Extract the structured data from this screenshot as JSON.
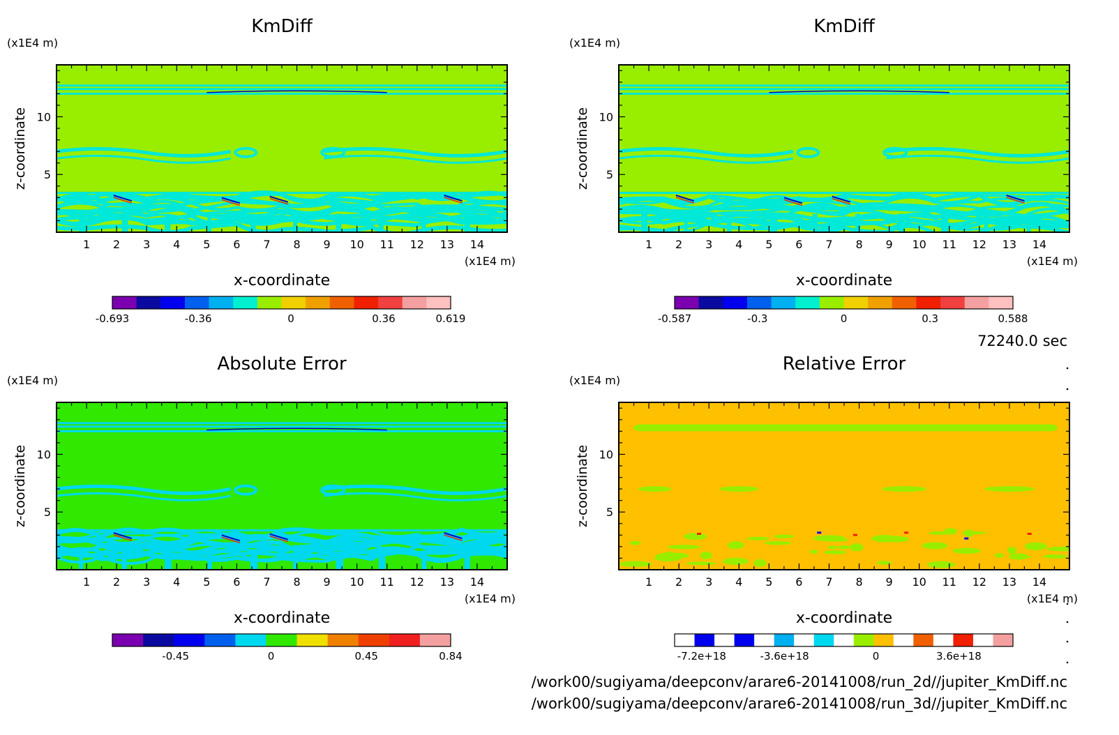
{
  "time_label": "72240.0 sec",
  "file_lines": [
    "/work00/sugiyama/deepconv/arare6-20141008/run_2d//jupiter_KmDiff.nc",
    "/work00/sugiyama/deepconv/arare6-20141008/run_3d//jupiter_KmDiff.nc"
  ],
  "colors": {
    "palette_14": [
      "#7a00b0",
      "#0a0aa0",
      "#0000ee",
      "#0060ee",
      "#00b0f0",
      "#00f0d0",
      "#99ee00",
      "#f0d000",
      "#f0a000",
      "#f06000",
      "#f02000",
      "#f04040",
      "#f5a0a0",
      "#ffc0c0"
    ],
    "palette_11": [
      "#7a00b0",
      "#0a0aa0",
      "#0000ee",
      "#0060ee",
      "#00d8f0",
      "#30e800",
      "#f0e000",
      "#f08000",
      "#f04000",
      "#f02020",
      "#f5a0a0"
    ],
    "rel_palette": [
      "#ffffff",
      "#0000ee",
      "#ffffff",
      "#0000ee",
      "#ffffff",
      "#00b0f0",
      "#ffffff",
      "#00d8f0",
      "#ffffff",
      "#99ee00",
      "#ffc000",
      "#ffffff",
      "#f06000",
      "#ffffff",
      "#f02000",
      "#ffffff",
      "#f5a0a0"
    ]
  },
  "chart_data": [
    {
      "type": "heatmap",
      "title": "KmDiff",
      "xlabel": "x-coordinate",
      "ylabel": "z-coordinate",
      "x_unit": "(x1E4 m)",
      "y_unit": "(x1E4 m)",
      "xlim": [
        0,
        15
      ],
      "ylim": [
        0,
        14.5
      ],
      "x_ticks": [
        1,
        2,
        3,
        4,
        5,
        6,
        7,
        8,
        9,
        10,
        11,
        12,
        13,
        14
      ],
      "y_ticks": [
        5,
        10
      ],
      "background_color": "#99ee00",
      "band_color": "#00e8d8",
      "line_colors": [
        "#0000c0",
        "#f02000"
      ],
      "colorbar": {
        "palette": "palette_14",
        "tick_labels": [
          "-0.693",
          "-0.36",
          "0",
          "0.36",
          "0.619"
        ],
        "tick_fracs": [
          0,
          0.254,
          0.528,
          0.802,
          1
        ]
      }
    },
    {
      "type": "heatmap",
      "title": "KmDiff",
      "xlabel": "x-coordinate",
      "ylabel": "z-coordinate",
      "x_unit": "(x1E4 m)",
      "y_unit": "(x1E4 m)",
      "xlim": [
        0,
        15
      ],
      "ylim": [
        0,
        14.5
      ],
      "x_ticks": [
        1,
        2,
        3,
        4,
        5,
        6,
        7,
        8,
        9,
        10,
        11,
        12,
        13,
        14
      ],
      "y_ticks": [
        5,
        10
      ],
      "background_color": "#99ee00",
      "band_color": "#00e8d8",
      "line_colors": [
        "#0000c0",
        "#f02000"
      ],
      "colorbar": {
        "palette": "palette_14",
        "tick_labels": [
          "-0.587",
          "-0.3",
          "0",
          "0.3",
          "0.588"
        ],
        "tick_fracs": [
          0,
          0.245,
          0.5,
          0.755,
          1
        ]
      }
    },
    {
      "type": "heatmap",
      "title": "Absolute Error",
      "xlabel": "x-coordinate",
      "ylabel": "z-coordinate",
      "x_unit": "(x1E4 m)",
      "y_unit": "(x1E4 m)",
      "xlim": [
        0,
        15
      ],
      "ylim": [
        0,
        14.5
      ],
      "x_ticks": [
        1,
        2,
        3,
        4,
        5,
        6,
        7,
        8,
        9,
        10,
        11,
        12,
        13,
        14
      ],
      "y_ticks": [
        5,
        10
      ],
      "background_color": "#30e800",
      "band_color": "#00d8f0",
      "line_colors": [
        "#0000c0",
        "#f02000"
      ],
      "colorbar": {
        "palette": "palette_11",
        "tick_labels": [
          "-0.45",
          "0",
          "0.45",
          "0.84"
        ],
        "tick_fracs": [
          0.187,
          0.469,
          0.751,
          1
        ]
      }
    },
    {
      "type": "heatmap",
      "title": "Relative Error",
      "xlabel": "x-coordinate",
      "ylabel": "z-coordinate",
      "x_unit": "(x1E4 m)",
      "y_unit": "(x1E4 m)",
      "xlim": [
        0,
        15
      ],
      "ylim": [
        0,
        14.5
      ],
      "x_ticks": [
        1,
        2,
        3,
        4,
        5,
        6,
        7,
        8,
        9,
        10,
        11,
        12,
        13,
        14
      ],
      "y_ticks": [
        5,
        10
      ],
      "background_color": "#ffc000",
      "band_color": "#99ee00",
      "line_colors": [
        "#0000ee",
        "#f02000"
      ],
      "colorbar": {
        "palette": "rel_palette",
        "tick_labels": [
          "-7.2e+18",
          "-3.6e+18",
          "0",
          "3.6e+18"
        ],
        "tick_fracs": [
          0.08,
          0.325,
          0.595,
          0.84
        ]
      }
    }
  ]
}
